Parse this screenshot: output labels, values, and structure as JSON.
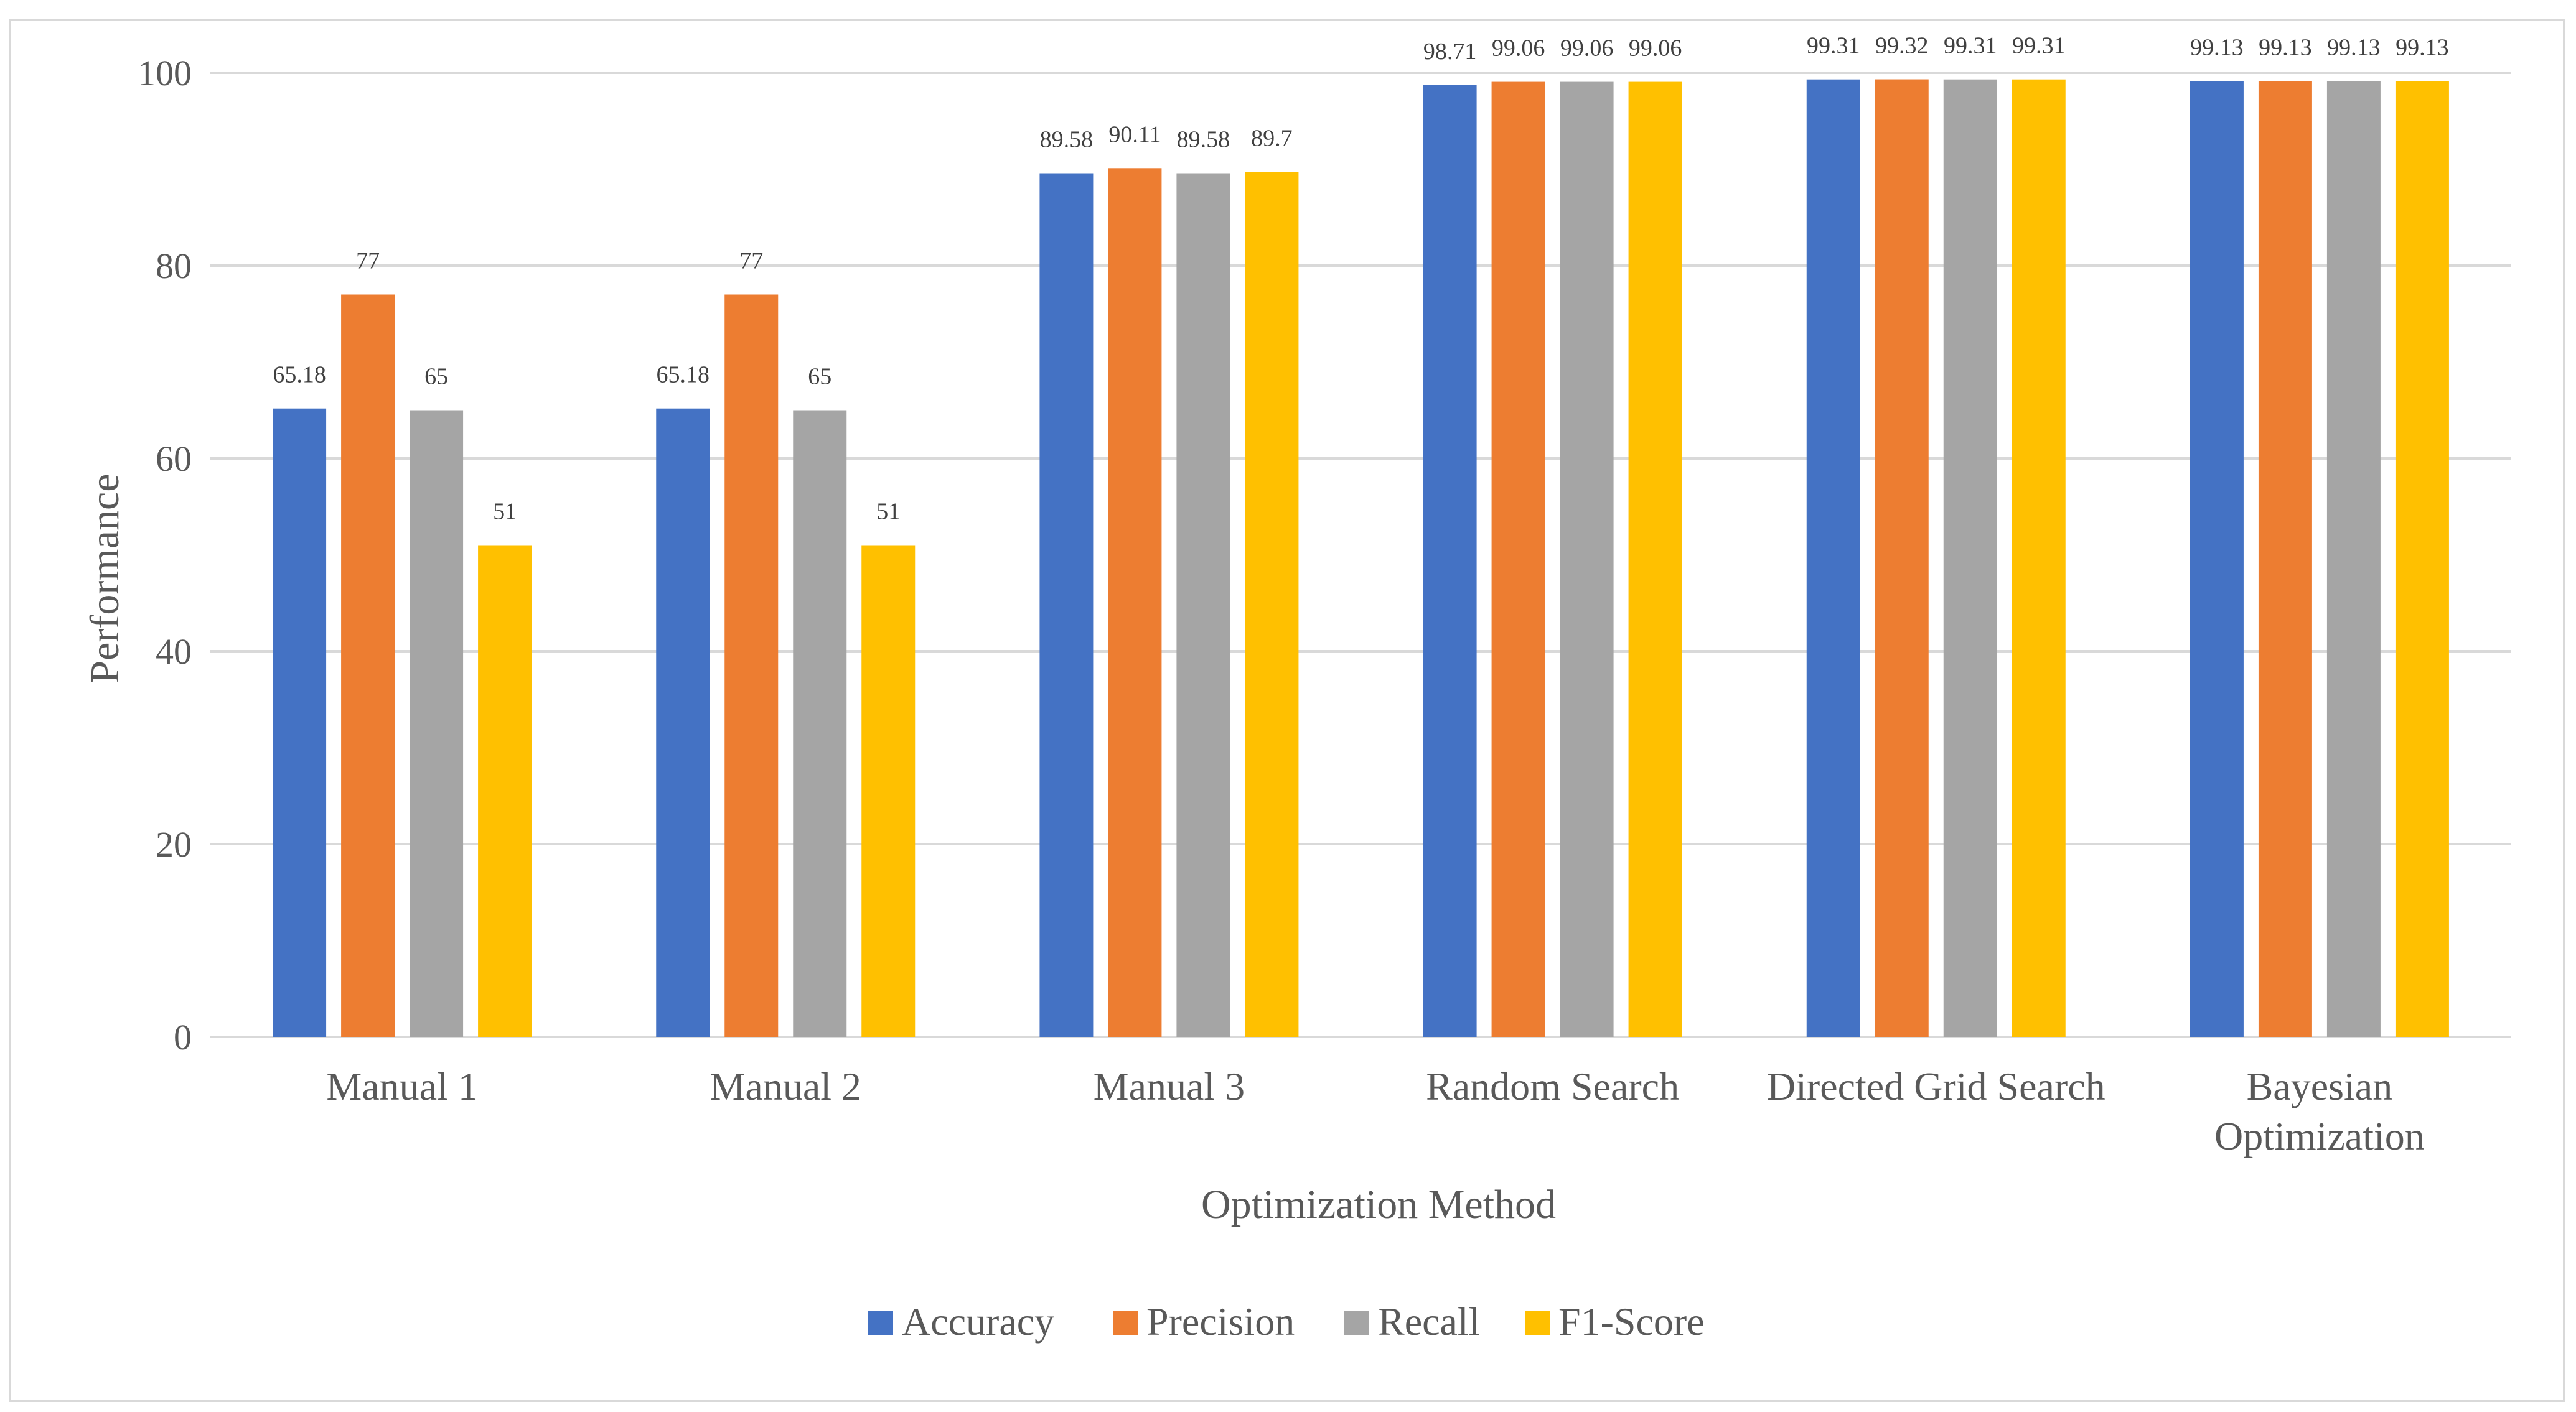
{
  "chart_data": {
    "type": "bar",
    "title": "",
    "xlabel": "Optimization Method",
    "ylabel": "Performance",
    "ylim": [
      0,
      100
    ],
    "yticks": [
      0,
      20,
      40,
      60,
      80,
      100
    ],
    "grid": true,
    "legend_position": "bottom",
    "categories": [
      [
        "Manual 1"
      ],
      [
        "Manual 2"
      ],
      [
        "Manual 3"
      ],
      [
        "Random Search"
      ],
      [
        "Directed Grid Search"
      ],
      [
        "Bayesian",
        "Optimization"
      ]
    ],
    "series": [
      {
        "name": "Accuracy",
        "color": "#4472C4",
        "values": [
          65.18,
          65.18,
          89.58,
          98.71,
          99.31,
          99.13
        ],
        "labels": [
          "65.18",
          "65.18",
          "89.58",
          "98.71",
          "99.31",
          "99.13"
        ]
      },
      {
        "name": "Precision",
        "color": "#ED7D31",
        "values": [
          77,
          77,
          90.11,
          99.06,
          99.32,
          99.13
        ],
        "labels": [
          "77",
          "77",
          "90.11",
          "99.06",
          "99.32",
          "99.13"
        ]
      },
      {
        "name": "Recall",
        "color": "#A5A5A5",
        "values": [
          65,
          65,
          89.58,
          99.06,
          99.31,
          99.13
        ],
        "labels": [
          "65",
          "65",
          "89.58",
          "99.06",
          "99.31",
          "99.13"
        ]
      },
      {
        "name": "F1-Score",
        "color": "#FFC000",
        "values": [
          51,
          51,
          89.7,
          99.06,
          99.31,
          99.13
        ],
        "labels": [
          "51",
          "51",
          "89.7",
          "99.06",
          "99.31",
          "99.13"
        ]
      }
    ]
  }
}
